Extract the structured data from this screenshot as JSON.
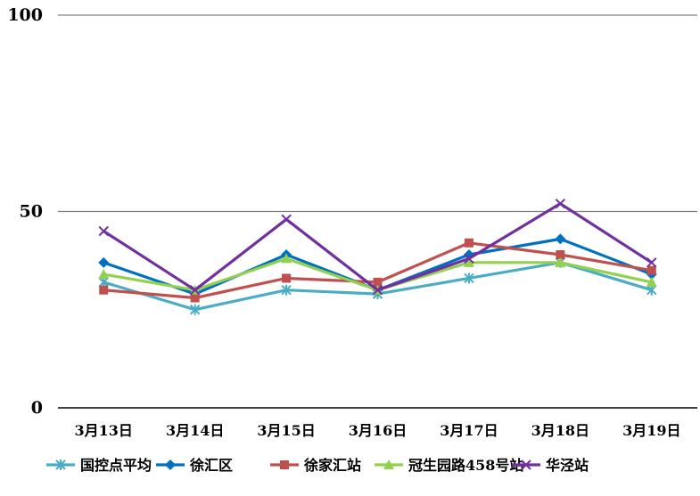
{
  "chart_data": {
    "type": "line",
    "title": "",
    "xlabel": "",
    "ylabel": "",
    "categories": [
      "3月13日",
      "3月14日",
      "3月15日",
      "3月16日",
      "3月17日",
      "3月18日",
      "3月19日"
    ],
    "ylim": [
      0,
      100
    ],
    "yticks": [
      "0",
      "50",
      "100"
    ],
    "grid": true,
    "legend_position": "bottom",
    "series": [
      {
        "name": "国控点平均",
        "color": "#4bacc6",
        "marker": "asterisk",
        "values": [
          32,
          25,
          30,
          29,
          33,
          37,
          30
        ]
      },
      {
        "name": "徐汇区",
        "color": "#0070c0",
        "marker": "diamond",
        "values": [
          37,
          29,
          39,
          30,
          39,
          43,
          34
        ]
      },
      {
        "name": "徐家汇站",
        "color": "#c0504d",
        "marker": "square",
        "values": [
          30,
          28,
          33,
          32,
          42,
          39,
          35
        ]
      },
      {
        "name": "冠生园路458号站",
        "color": "#92d050",
        "marker": "triangle",
        "values": [
          34,
          30,
          38,
          30,
          37,
          37,
          32
        ]
      },
      {
        "name": "华泾站",
        "color": "#7030a0",
        "marker": "x",
        "values": [
          45,
          30,
          48,
          30,
          38,
          52,
          37
        ]
      }
    ]
  }
}
